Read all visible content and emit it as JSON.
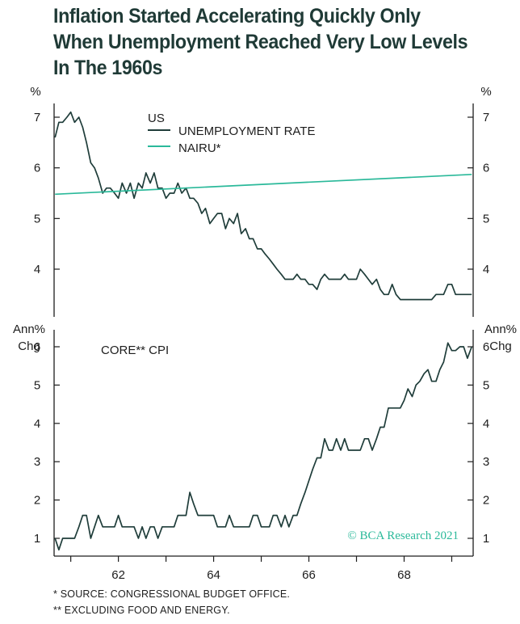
{
  "title_lines": [
    "Inflation Started Accelerating Quickly Only",
    "When Unemployment Reached Very Low Levels",
    "In The 1960s"
  ],
  "colors": {
    "unemployment": "#1f3d3a",
    "nairu": "#2bb99a",
    "text": "#1d1d1d",
    "copyright": "#2bb99a"
  },
  "footnotes": [
    "*  SOURCE: CONGRESSIONAL BUDGET OFFICE.",
    "** EXCLUDING FOOD AND ENERGY."
  ],
  "copyright": "© BCA Research 2021",
  "chart_data": [
    {
      "type": "line",
      "panel": "top",
      "unit_label": "%",
      "region_label": "US",
      "x_ticks": [
        62,
        64,
        66,
        68
      ],
      "xlim": [
        60.65,
        69.45
      ],
      "ylim": [
        2.99,
        7.3
      ],
      "y_ticks": [
        4,
        5,
        6,
        7
      ],
      "legend_placement": "top-left",
      "series": [
        {
          "name": "UNEMPLOYMENT RATE",
          "color": "#1f3d3a",
          "x": [
            60.67,
            60.75,
            60.83,
            60.92,
            61.0,
            61.08,
            61.17,
            61.25,
            61.33,
            61.42,
            61.5,
            61.58,
            61.67,
            61.75,
            61.83,
            61.92,
            62.0,
            62.08,
            62.17,
            62.25,
            62.33,
            62.42,
            62.5,
            62.58,
            62.67,
            62.75,
            62.83,
            62.92,
            63.0,
            63.08,
            63.17,
            63.25,
            63.33,
            63.42,
            63.5,
            63.58,
            63.67,
            63.75,
            63.83,
            63.92,
            64.0,
            64.08,
            64.17,
            64.25,
            64.33,
            64.42,
            64.5,
            64.58,
            64.67,
            64.75,
            64.83,
            64.92,
            65.0,
            65.08,
            65.17,
            65.25,
            65.33,
            65.42,
            65.5,
            65.58,
            65.67,
            65.75,
            65.83,
            65.92,
            66.0,
            66.08,
            66.17,
            66.25,
            66.33,
            66.42,
            66.5,
            66.58,
            66.67,
            66.75,
            66.83,
            66.92,
            67.0,
            67.08,
            67.17,
            67.25,
            67.33,
            67.42,
            67.5,
            67.58,
            67.67,
            67.75,
            67.83,
            67.92,
            68.0,
            68.08,
            68.17,
            68.25,
            68.33,
            68.42,
            68.5,
            68.58,
            68.67,
            68.75,
            68.83,
            68.92,
            69.0,
            69.08,
            69.17,
            69.25,
            69.33,
            69.42
          ],
          "values": [
            6.6,
            6.9,
            6.9,
            7.0,
            7.1,
            6.9,
            7.0,
            6.8,
            6.5,
            6.1,
            6.0,
            5.8,
            5.5,
            5.6,
            5.6,
            5.5,
            5.4,
            5.7,
            5.5,
            5.7,
            5.4,
            5.7,
            5.6,
            5.9,
            5.7,
            5.9,
            5.6,
            5.6,
            5.4,
            5.5,
            5.5,
            5.7,
            5.5,
            5.6,
            5.4,
            5.4,
            5.3,
            5.1,
            5.2,
            4.9,
            5.0,
            5.1,
            5.1,
            4.8,
            5.0,
            4.9,
            5.1,
            4.7,
            4.8,
            4.6,
            4.6,
            4.4,
            4.4,
            4.3,
            4.2,
            4.1,
            4.0,
            3.9,
            3.8,
            3.8,
            3.8,
            3.9,
            3.8,
            3.8,
            3.7,
            3.7,
            3.6,
            3.8,
            3.9,
            3.8,
            3.8,
            3.8,
            3.8,
            3.9,
            3.8,
            3.8,
            3.8,
            4.0,
            3.9,
            3.8,
            3.7,
            3.8,
            3.6,
            3.5,
            3.5,
            3.7,
            3.5,
            3.4,
            3.4,
            3.4,
            3.4,
            3.4,
            3.4,
            3.4,
            3.4,
            3.4,
            3.5,
            3.5,
            3.5,
            3.7,
            3.7,
            3.5,
            3.5,
            3.5,
            3.5,
            3.5
          ],
          "x_note": "monthly"
        },
        {
          "name": "NAIRU*",
          "color": "#2bb99a",
          "x": [
            60.67,
            69.42
          ],
          "values": [
            5.48,
            5.87
          ]
        }
      ]
    },
    {
      "type": "line",
      "panel": "bottom",
      "unit_label_lines": [
        "Ann%",
        "Chg"
      ],
      "series_label": "CORE** CPI",
      "x_ticks": [
        62,
        64,
        66,
        68
      ],
      "xlim": [
        60.65,
        69.45
      ],
      "ylim": [
        0.55,
        6.55
      ],
      "y_ticks": [
        1,
        2,
        3,
        4,
        5,
        6
      ],
      "series": [
        {
          "name": "CORE** CPI",
          "color": "#1f3d3a",
          "x": [
            60.67,
            60.75,
            60.83,
            60.92,
            61.0,
            61.08,
            61.17,
            61.25,
            61.33,
            61.42,
            61.5,
            61.58,
            61.67,
            61.75,
            61.83,
            61.92,
            62.0,
            62.08,
            62.17,
            62.25,
            62.33,
            62.42,
            62.5,
            62.58,
            62.67,
            62.75,
            62.83,
            62.92,
            63.0,
            63.08,
            63.17,
            63.25,
            63.33,
            63.42,
            63.5,
            63.58,
            63.67,
            63.75,
            63.83,
            63.92,
            64.0,
            64.08,
            64.17,
            64.25,
            64.33,
            64.42,
            64.5,
            64.58,
            64.67,
            64.75,
            64.83,
            64.92,
            65.0,
            65.08,
            65.17,
            65.25,
            65.33,
            65.42,
            65.5,
            65.58,
            65.67,
            65.75,
            65.83,
            65.92,
            66.0,
            66.08,
            66.17,
            66.25,
            66.33,
            66.42,
            66.5,
            66.58,
            66.67,
            66.75,
            66.83,
            66.92,
            67.0,
            67.08,
            67.17,
            67.25,
            67.33,
            67.42,
            67.5,
            67.58,
            67.67,
            67.75,
            67.83,
            67.92,
            68.0,
            68.08,
            68.17,
            68.25,
            68.33,
            68.42,
            68.5,
            68.58,
            68.67,
            68.75,
            68.83,
            68.92,
            69.0,
            69.08,
            69.17,
            69.25,
            69.33,
            69.42
          ],
          "values": [
            1.0,
            0.7,
            1.0,
            1.0,
            1.0,
            1.0,
            1.3,
            1.6,
            1.6,
            1.0,
            1.3,
            1.6,
            1.3,
            1.3,
            1.3,
            1.3,
            1.6,
            1.3,
            1.3,
            1.3,
            1.3,
            1.0,
            1.3,
            1.0,
            1.3,
            1.3,
            1.0,
            1.3,
            1.3,
            1.3,
            1.3,
            1.6,
            1.6,
            1.6,
            2.2,
            1.9,
            1.6,
            1.6,
            1.6,
            1.6,
            1.6,
            1.3,
            1.3,
            1.3,
            1.6,
            1.3,
            1.3,
            1.3,
            1.3,
            1.3,
            1.6,
            1.6,
            1.3,
            1.3,
            1.3,
            1.6,
            1.6,
            1.3,
            1.6,
            1.3,
            1.6,
            1.6,
            1.9,
            2.2,
            2.5,
            2.8,
            3.1,
            3.1,
            3.6,
            3.3,
            3.3,
            3.6,
            3.3,
            3.6,
            3.3,
            3.3,
            3.3,
            3.3,
            3.6,
            3.6,
            3.3,
            3.6,
            3.9,
            3.9,
            4.4,
            4.4,
            4.4,
            4.4,
            4.6,
            4.9,
            4.7,
            5.0,
            5.1,
            5.3,
            5.4,
            5.1,
            5.1,
            5.4,
            5.6,
            6.1,
            5.9,
            5.9,
            6.0,
            6.0,
            5.7,
            6.0
          ]
        }
      ]
    }
  ]
}
